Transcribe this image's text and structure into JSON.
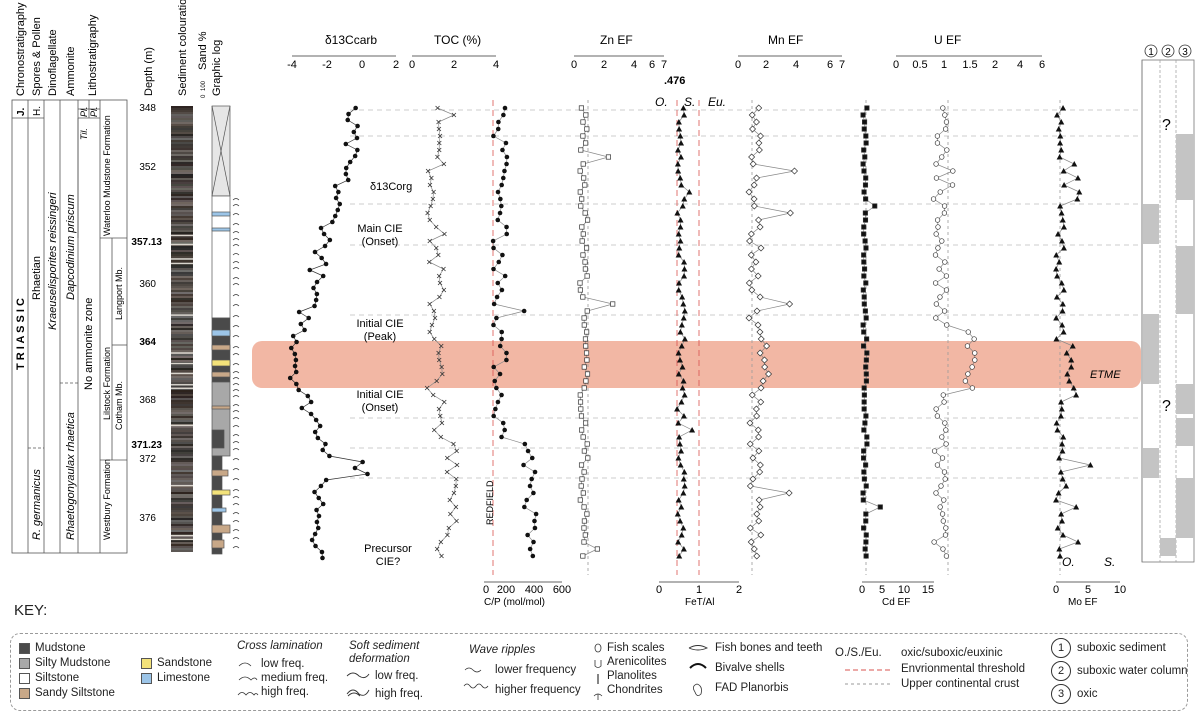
{
  "strat_headers": {
    "chronostratigraphy": "Chronostratigraphy",
    "spores_pollen": "Spores & Pollen",
    "dinoflagellate": "Dinoflagellate",
    "ammonite": "Ammonite",
    "lithostratigraphy": "Lithostratigraphy",
    "depth": "Depth (m)",
    "sediment_colouration": "Sediment colouration",
    "sand_percent": "Sand %",
    "sand_ticks": [
      "100",
      "0"
    ],
    "graphic_log": "Graphic log"
  },
  "strat_labels": {
    "jurassic": "J.",
    "hettangian": "H.",
    "triassic": "T R I A S S I C",
    "rhaetian": "Rhaetian",
    "kraeuselisporites": "Kraeuselisporites reissingeri",
    "r_germanicus": "R. germanicus",
    "dapcodinium": "Dapcodinium priscum",
    "rhaetogonyaulax": "Rhaetogonyaulax rhaetica",
    "tilmanni": "Til.",
    "planorbis1": "Pl.",
    "planorbis2": "Pl.",
    "no_ammonite": "No ammonite zone",
    "waterloo": "Waterloo Mudstone Formation",
    "lilstock": "Lilstock Formation",
    "langport": "Langport Mb.",
    "cotham": "Cotham Mb.",
    "westbury": "Westbury Formation"
  },
  "depth_ticks": [
    "348",
    "352",
    "357.13",
    "360",
    "364",
    "368",
    "371.23",
    "372",
    "376"
  ],
  "axes": {
    "d13c_label": "δ13Ccarb",
    "d13c_ticks": [
      "-4",
      "-2",
      "0",
      "2"
    ],
    "toc_label": "TOC (%)",
    "toc_ticks": [
      "0",
      "2",
      "4"
    ],
    "cp_label": "C/P (mol/mol)",
    "cp_ticks": [
      "0",
      "200",
      "400",
      "600"
    ],
    "zn_label": "Zn EF",
    "zn_ticks": [
      "0",
      "2",
      "4",
      "6",
      "7"
    ],
    "fe_label": "FeT/Al",
    "fe_ticks": [
      "0",
      "1",
      "2"
    ],
    "fe_extra": ".476",
    "mn_label": "Mn EF",
    "mn_ticks": [
      "0",
      "2",
      "4",
      "6",
      "7"
    ],
    "cd_label": "Cd EF",
    "cd_ticks": [
      "0",
      "5",
      "10",
      "15"
    ],
    "u_label": "U EF",
    "u_ticks": [
      "0",
      "0.5",
      "1",
      "1.5",
      "2",
      "4",
      "6"
    ],
    "mo_label": "Mo EF",
    "mo_ticks": [
      "0",
      "5",
      "10"
    ]
  },
  "annotations": {
    "d13c_org": "δ13Corg",
    "main_cie_1": "Main CIE",
    "main_cie_2": "(Onset)",
    "initial_peak_1": "Initial CIE",
    "initial_peak_2": "(Peak)",
    "initial_onset_1": "Initial CIE",
    "initial_onset_2": "(Onset)",
    "precursor_1": "Precursor",
    "precursor_2": "CIE?",
    "redfield": "REDFIELD",
    "etme": "ETME",
    "oxic_top_o": "O.",
    "oxic_top_s": "S.",
    "oxic_top_eu": "Eu.",
    "oxic_bottom_o": "O.",
    "oxic_bottom_s": "S.",
    "question_top": "?",
    "question_mid": "?",
    "col_headers": [
      "1",
      "2",
      "3"
    ]
  },
  "key": {
    "title": "KEY:",
    "lithology": [
      {
        "label": "Mudstone",
        "color": "#4a4a4a"
      },
      {
        "label": "Silty Mudstone",
        "color": "#a8a8a8"
      },
      {
        "label": "Siltstone",
        "color": "#ffffff"
      },
      {
        "label": "Sandy Siltstone",
        "color": "#c8a888"
      },
      {
        "label": "Sandstone",
        "color": "#f3e27a"
      },
      {
        "label": "Limestone",
        "color": "#9cc5e8"
      }
    ],
    "cross_lamination_title": "Cross lamination",
    "cross_lamination": [
      "low freq.",
      "medium freq.",
      "high freq."
    ],
    "soft_sediment_title": "Soft sediment deformation",
    "soft_sediment": [
      "low freq.",
      "high freq."
    ],
    "wave_ripples_title": "Wave ripples",
    "wave_ripples": [
      "lower frequency",
      "higher frequency"
    ],
    "traces": [
      "Fish scales",
      "Arenicolites",
      "Planolites",
      "Chondrites"
    ],
    "fossils": [
      "Fish bones and teeth",
      "Bivalve shells",
      "FAD Planorbis"
    ],
    "redox_abbrev": "O./S./Eu.",
    "redox_items": [
      "oxic/suboxic/euxinic",
      "Envrionmental threshold",
      "Upper continental crust"
    ],
    "numbered": [
      "suboxic sediment",
      "suboxic water column",
      "oxic"
    ]
  },
  "colors": {
    "etme_band": "#f2b7a4",
    "threshold_red": "#d9534f",
    "crust_gray": "#9a9a9a",
    "oxic_gray": "#c4c4c4"
  }
}
